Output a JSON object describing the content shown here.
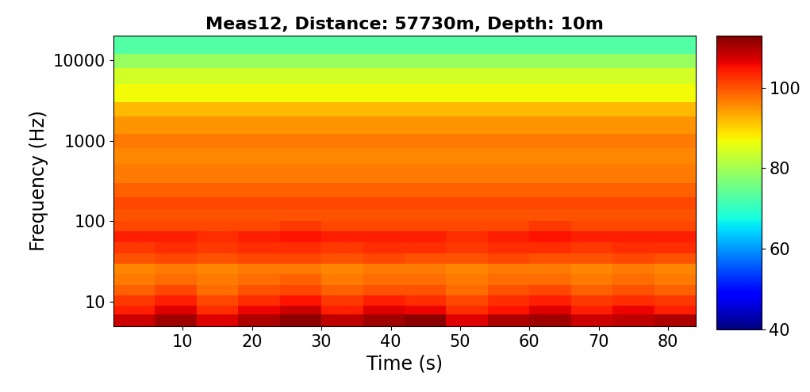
{
  "chart_data": {
    "type": "heatmap",
    "title": "Meas12, Distance: 57730m, Depth: 10m",
    "x_label": "Time (s)",
    "y_label": "Frequency (Hz)",
    "color": "jet",
    "log": "y",
    "xlim": [
      0,
      84
    ],
    "xticks": [
      10,
      20,
      30,
      40,
      50,
      60,
      70,
      80
    ],
    "ylim": [
      5,
      20000
    ],
    "yticks": [
      10,
      100,
      1000,
      10000
    ],
    "x_edges": [
      0,
      6,
      12,
      18,
      24,
      30,
      36,
      42,
      48,
      54,
      60,
      66,
      72,
      78,
      84
    ],
    "y_edges": [
      5,
      7,
      9,
      12,
      16,
      22,
      30,
      40,
      55,
      75,
      100,
      140,
      200,
      300,
      500,
      800,
      1200,
      2000,
      3000,
      5000,
      8000,
      12000,
      20000
    ],
    "values": [
      [
        108,
        111,
        107,
        110,
        112,
        109,
        111,
        112,
        107,
        110,
        111,
        108,
        109,
        110
      ],
      [
        104,
        107,
        103,
        106,
        108,
        104,
        107,
        106,
        103,
        105,
        107,
        104,
        106,
        104
      ],
      [
        102,
        104,
        101,
        103,
        105,
        102,
        104,
        103,
        101,
        103,
        104,
        102,
        103,
        102
      ],
      [
        99,
        101,
        98,
        100,
        101,
        99,
        100,
        100,
        98,
        100,
        101,
        99,
        100,
        99
      ],
      [
        97,
        98,
        97,
        98,
        99,
        97,
        98,
        98,
        97,
        98,
        98,
        97,
        98,
        97
      ],
      [
        96,
        97,
        96,
        97,
        97,
        96,
        97,
        97,
        96,
        97,
        97,
        96,
        97,
        96
      ],
      [
        100,
        101,
        100,
        101,
        101,
        100,
        101,
        100,
        100,
        101,
        100,
        100,
        101,
        100
      ],
      [
        102,
        103,
        102,
        103,
        103,
        102,
        103,
        103,
        102,
        103,
        103,
        102,
        103,
        103
      ],
      [
        104,
        104,
        103,
        104,
        105,
        104,
        104,
        104,
        103,
        104,
        105,
        104,
        104,
        104
      ],
      [
        101,
        101,
        101,
        101,
        102,
        101,
        101,
        101,
        101,
        101,
        102,
        101,
        101,
        101
      ],
      [
        100,
        100,
        100,
        100,
        100,
        100,
        100,
        100,
        100,
        100,
        100,
        100,
        100,
        100
      ],
      [
        101,
        101,
        101,
        101,
        101,
        101,
        101,
        101,
        101,
        101,
        101,
        101,
        101,
        101
      ],
      [
        99,
        99,
        99,
        99,
        99,
        99,
        99,
        99,
        99,
        99,
        99,
        99,
        99,
        99
      ],
      [
        97,
        97,
        97,
        97,
        97,
        97,
        97,
        97,
        97,
        97,
        97,
        97,
        97,
        97
      ],
      [
        96,
        96,
        96,
        96,
        96,
        96,
        96,
        96,
        96,
        96,
        96,
        96,
        96,
        96
      ],
      [
        97,
        97,
        97,
        97,
        97,
        97,
        97,
        97,
        97,
        97,
        97,
        97,
        97,
        97
      ],
      [
        95,
        95,
        95,
        95,
        95,
        95,
        95,
        95,
        95,
        95,
        95,
        95,
        95,
        95
      ],
      [
        92,
        92,
        92,
        92,
        92,
        92,
        92,
        92,
        92,
        92,
        92,
        92,
        92,
        92
      ],
      [
        87,
        87,
        87,
        87,
        87,
        87,
        87,
        87,
        87,
        87,
        87,
        87,
        87,
        87
      ],
      [
        84,
        84,
        84,
        84,
        84,
        84,
        84,
        84,
        84,
        84,
        84,
        84,
        84,
        84
      ],
      [
        79,
        79,
        79,
        79,
        79,
        79,
        79,
        79,
        79,
        79,
        79,
        79,
        79,
        79
      ],
      [
        73,
        73,
        73,
        73,
        73,
        73,
        73,
        73,
        73,
        73,
        73,
        73,
        73,
        73
      ]
    ],
    "colorbar_range": [
      40,
      113
    ],
    "colorbar_ticks": [
      40,
      60,
      80,
      100
    ]
  }
}
